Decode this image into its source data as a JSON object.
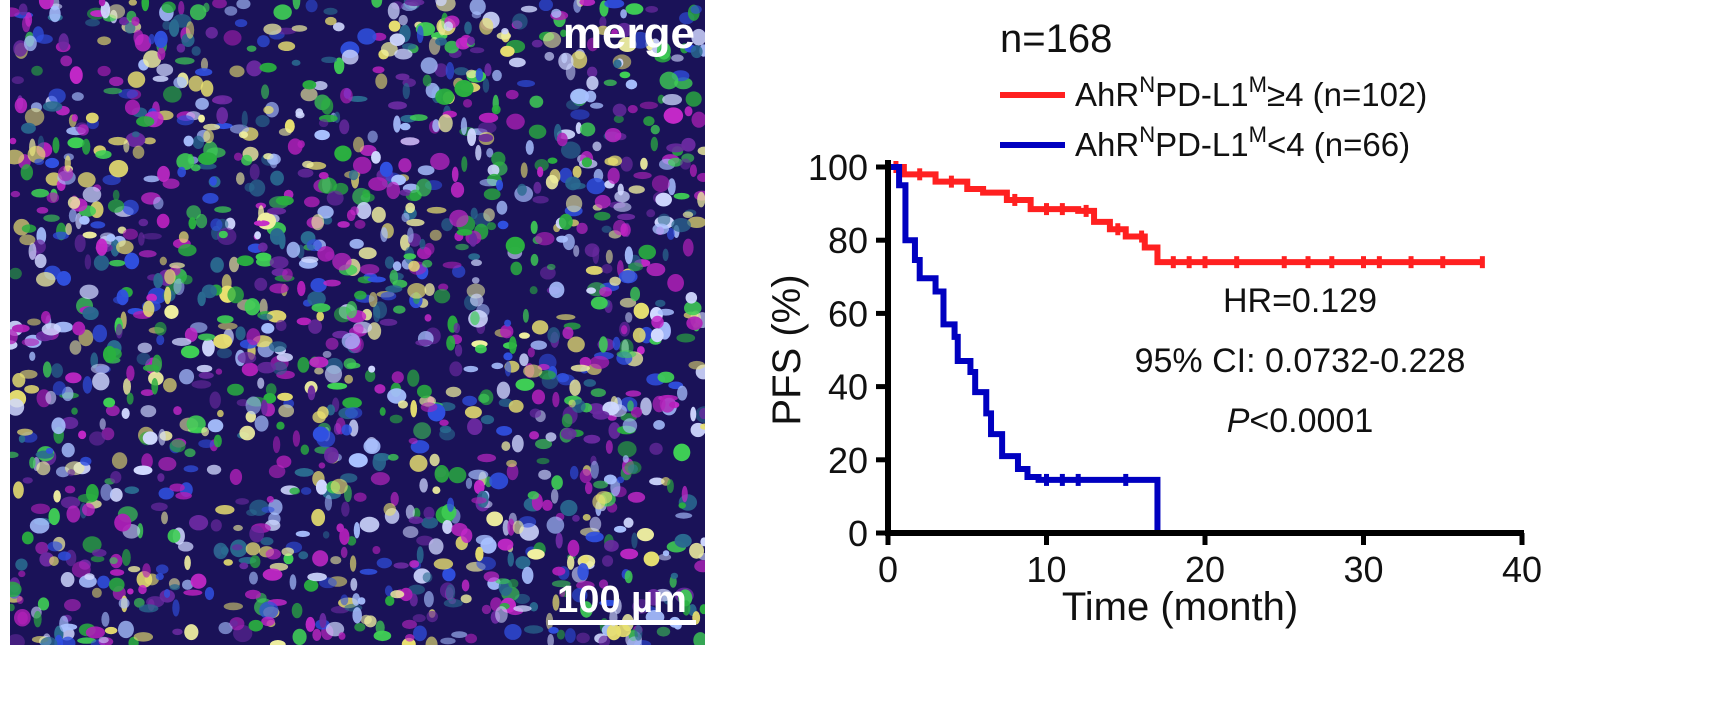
{
  "micrograph": {
    "label": "merge",
    "scale_bar": "100 µm"
  },
  "chart_data": {
    "type": "line",
    "subtype": "kaplan-meier",
    "annotation_n": "n=168",
    "xlabel": "Time (month)",
    "ylabel": "PFS (%)",
    "xlim": [
      0,
      40
    ],
    "ylim": [
      0,
      100
    ],
    "xticks": [
      "0",
      "10",
      "20",
      "30",
      "40"
    ],
    "yticks": [
      "0",
      "20",
      "40",
      "60",
      "80",
      "100"
    ],
    "grid": false,
    "legend_position": "top",
    "series": [
      {
        "name_parts": {
          "a": "AhR",
          "sup1": "N",
          "b": "PD-L1",
          "sup2": "M",
          "c": "≥4 (n=102)"
        },
        "color": "#ff2020",
        "steps": [
          [
            0,
            100
          ],
          [
            1,
            98
          ],
          [
            3,
            96
          ],
          [
            5,
            94
          ],
          [
            6,
            93
          ],
          [
            7.5,
            91
          ],
          [
            9,
            88.5
          ],
          [
            12,
            88
          ],
          [
            13,
            85
          ],
          [
            14,
            83
          ],
          [
            15,
            81
          ],
          [
            16.2,
            78
          ],
          [
            17,
            74
          ],
          [
            37.5,
            74
          ]
        ],
        "censored": [
          [
            0.5,
            100
          ],
          [
            2,
            98
          ],
          [
            4,
            96
          ],
          [
            8,
            91
          ],
          [
            10,
            88.5
          ],
          [
            11,
            88.5
          ],
          [
            12.5,
            88
          ],
          [
            14.5,
            83
          ],
          [
            16,
            81
          ],
          [
            18,
            74
          ],
          [
            19,
            74
          ],
          [
            20,
            74
          ],
          [
            22,
            74
          ],
          [
            25,
            74
          ],
          [
            26.5,
            74
          ],
          [
            28,
            74
          ],
          [
            30,
            74
          ],
          [
            31,
            74
          ],
          [
            33,
            74
          ],
          [
            35,
            74
          ],
          [
            37.5,
            74
          ]
        ]
      },
      {
        "name_parts": {
          "a": "AhR",
          "sup1": "N",
          "b": "PD-L1",
          "sup2": "M",
          "c": "<4 (n=66)"
        },
        "color": "#0000c0",
        "steps": [
          [
            0,
            100
          ],
          [
            0.7,
            95
          ],
          [
            1.1,
            80
          ],
          [
            1.7,
            74.6
          ],
          [
            2,
            69.6
          ],
          [
            3,
            66
          ],
          [
            3.5,
            57
          ],
          [
            4.2,
            53.6
          ],
          [
            4.4,
            47
          ],
          [
            5.2,
            44
          ],
          [
            5.5,
            38.5
          ],
          [
            6.2,
            32.7
          ],
          [
            6.5,
            27
          ],
          [
            7.2,
            21
          ],
          [
            8.2,
            17.5
          ],
          [
            8.8,
            15.3
          ],
          [
            9.5,
            14.5
          ],
          [
            17,
            0
          ]
        ],
        "censored": [
          [
            10,
            14.5
          ],
          [
            11,
            14.5
          ],
          [
            12,
            14.5
          ],
          [
            15,
            14.5
          ]
        ]
      }
    ],
    "annotations": {
      "hr": "HR=0.129",
      "ci": "95% CI: 0.0732-0.228",
      "p_italic": "P",
      "p_value": "<0.0001"
    }
  }
}
